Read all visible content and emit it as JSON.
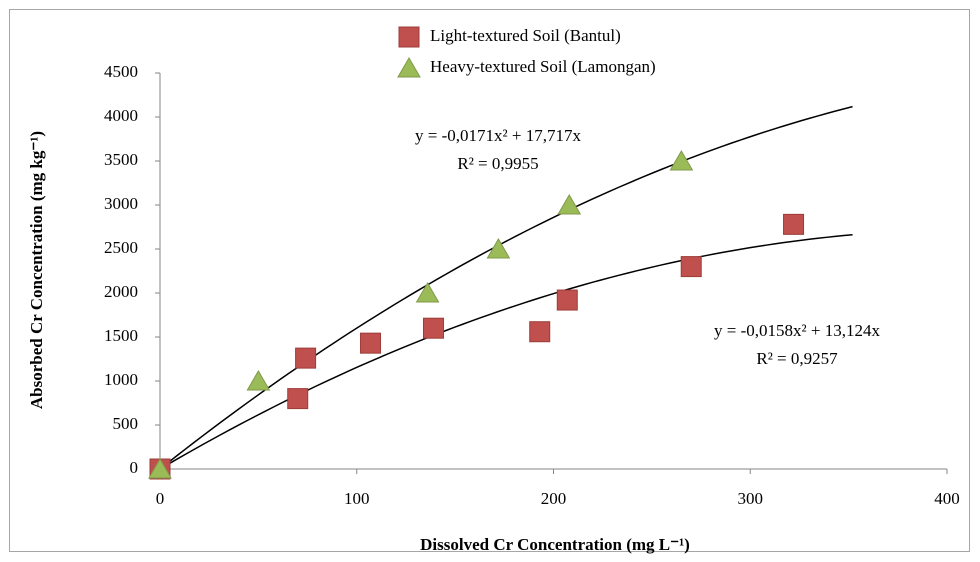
{
  "chart_data": {
    "type": "scatter",
    "x_label": "Dissolved Cr Concentration (mg L⁻¹)",
    "y_label": "Absorbed Cr Concentration (mg kg⁻¹)",
    "xlim": [
      0,
      400
    ],
    "xticks": [
      0,
      100,
      200,
      300,
      400
    ],
    "ylim": [
      0,
      4500
    ],
    "yticks": [
      0,
      500,
      1000,
      1500,
      2000,
      2500,
      3000,
      3500,
      4000,
      4500
    ],
    "grid": false,
    "legend": "top",
    "series": [
      {
        "name": "Light-textured Soil (Bantul)",
        "color": "#c0504d",
        "marker": "square",
        "x": [
          0,
          70,
          74,
          107,
          139,
          193,
          207,
          270,
          322
        ],
        "values": [
          0,
          800,
          1260,
          1430,
          1600,
          1560,
          1920,
          2300,
          2780
        ],
        "trendline": {
          "equation": "y = -0,0158x² + 13,124x",
          "r2": "R² = 0,9257",
          "coefficients": [
            -0.0158,
            13.124
          ],
          "xlim": [
            0,
            352
          ]
        }
      },
      {
        "name": "Heavy-textured Soil (Lamongan)",
        "color": "#9bbb59",
        "marker": "triangle",
        "x": [
          0,
          50,
          136,
          172,
          208,
          265
        ],
        "values": [
          0,
          1000,
          2000,
          2500,
          3000,
          3500
        ],
        "trendline": {
          "equation": "y = -0,0171x² + 17,717x",
          "r2": "R² = 0,9955",
          "coefficients": [
            -0.0171,
            17.717
          ],
          "xlim": [
            0,
            352
          ]
        }
      }
    ]
  }
}
